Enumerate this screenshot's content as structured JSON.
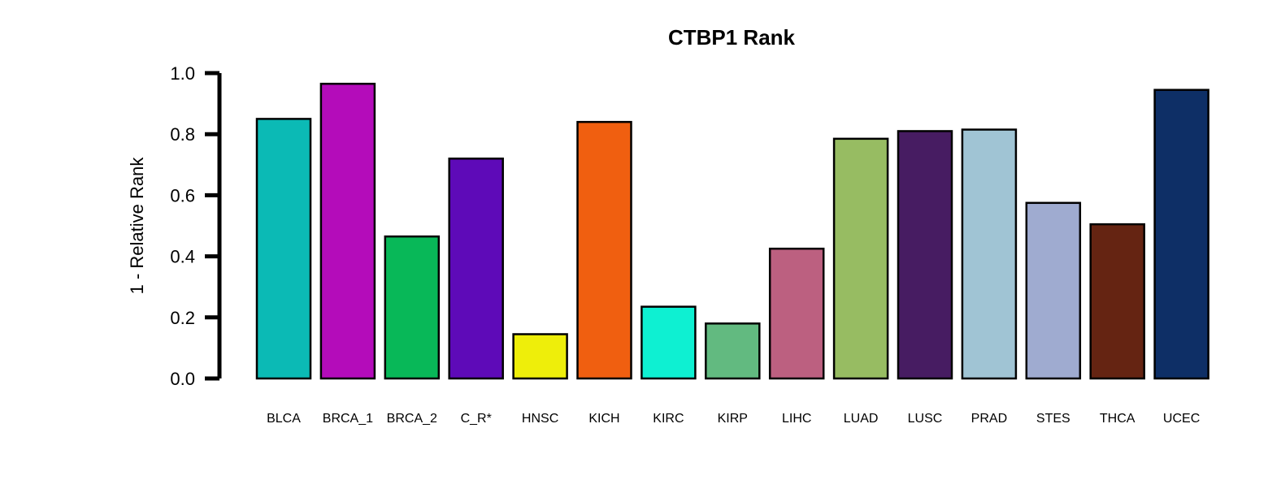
{
  "chart_data": {
    "type": "bar",
    "title": "CTBP1 Rank",
    "xlabel": "",
    "ylabel": "1 - Relative Rank",
    "ylim": [
      0,
      1
    ],
    "yticks": [
      "0.0",
      "0.2",
      "0.4",
      "0.6",
      "0.8",
      "1.0"
    ],
    "grid": false,
    "categories": [
      "BLCA",
      "BRCA_1",
      "BRCA_2",
      "C_R*",
      "HNSC",
      "KICH",
      "KIRC",
      "KIRP",
      "LIHC",
      "LUAD",
      "LUSC",
      "PRAD",
      "STES",
      "THCA",
      "UCEC"
    ],
    "values": [
      0.85,
      0.965,
      0.465,
      0.72,
      0.145,
      0.84,
      0.235,
      0.18,
      0.425,
      0.785,
      0.81,
      0.815,
      0.575,
      0.505,
      0.945
    ],
    "colors": [
      "#0bbab5",
      "#b40cba",
      "#08b858",
      "#5e0ab8",
      "#eeee0a",
      "#f05f10",
      "#0ef0d2",
      "#62ba80",
      "#bc6080",
      "#97bc62",
      "#471c62",
      "#a0c4d4",
      "#9fabd0",
      "#652412",
      "#0e2f66"
    ]
  }
}
